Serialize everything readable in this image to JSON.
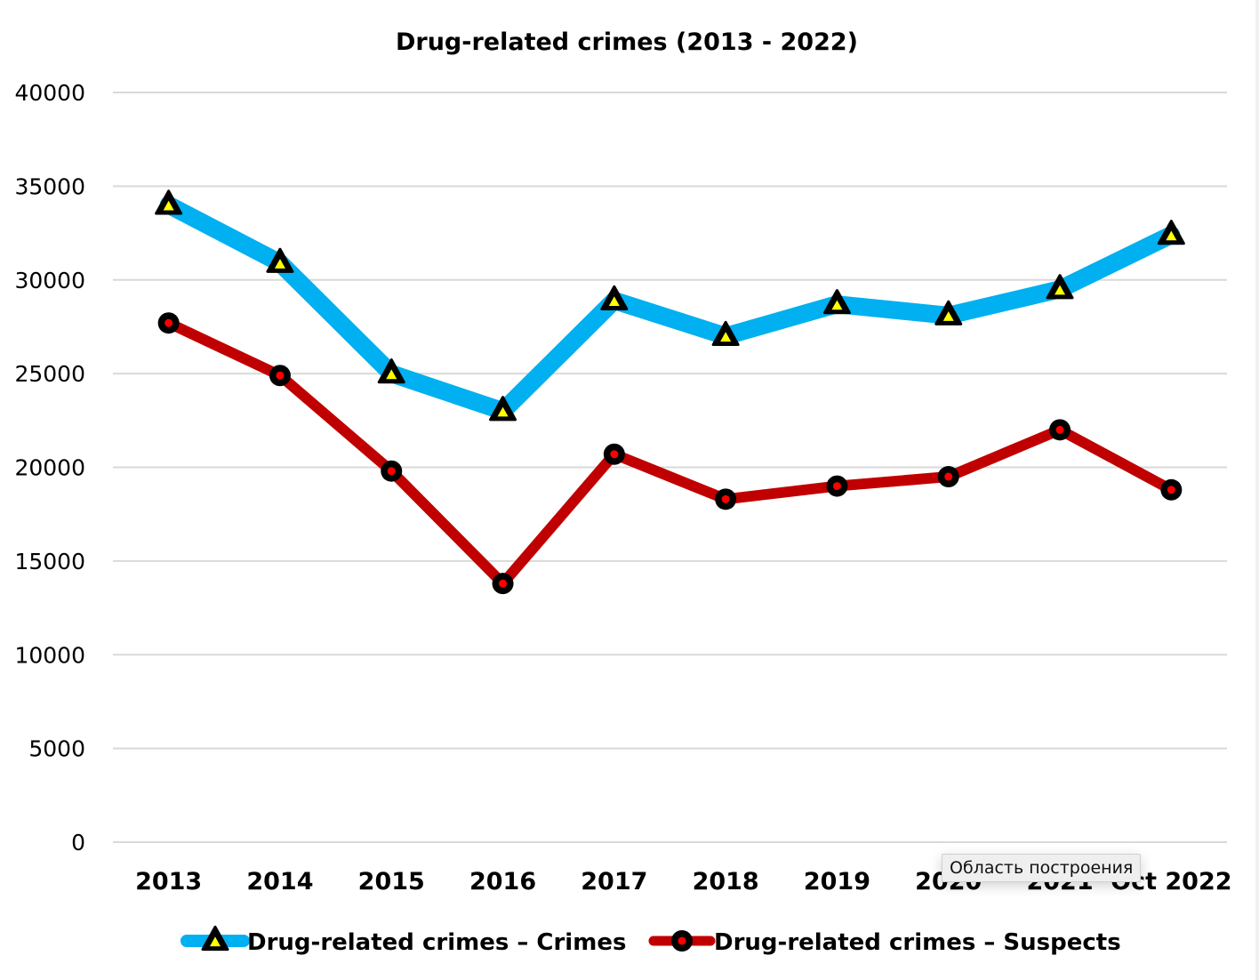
{
  "chart_data": {
    "type": "line",
    "title": "Drug-related crimes (2013 - 2022)",
    "xlabel": "",
    "ylabel": "",
    "categories": [
      "2013",
      "2014",
      "2015",
      "2016",
      "2017",
      "2018",
      "2019",
      "2020",
      "2021",
      "Oct 2022"
    ],
    "ylim": [
      0,
      40000
    ],
    "yticks": [
      0,
      5000,
      10000,
      15000,
      20000,
      25000,
      30000,
      35000,
      40000
    ],
    "grid": true,
    "legend_position": "bottom",
    "series": [
      {
        "name": "Drug-related crimes – Crimes",
        "color": "#00b0f0",
        "marker": "triangle",
        "marker_fill": "#ffff00",
        "marker_edge": "#000000",
        "values": [
          34000,
          30900,
          25000,
          23000,
          28900,
          27000,
          28700,
          28100,
          29500,
          32400
        ]
      },
      {
        "name": "Drug-related crimes – Suspects",
        "color": "#c00000",
        "marker": "circle",
        "marker_fill": "#ff0000",
        "marker_edge": "#000000",
        "values": [
          27700,
          24900,
          19800,
          13800,
          20700,
          18300,
          19000,
          19500,
          22000,
          18800
        ]
      }
    ]
  },
  "tooltip": {
    "text": "Область построения"
  }
}
